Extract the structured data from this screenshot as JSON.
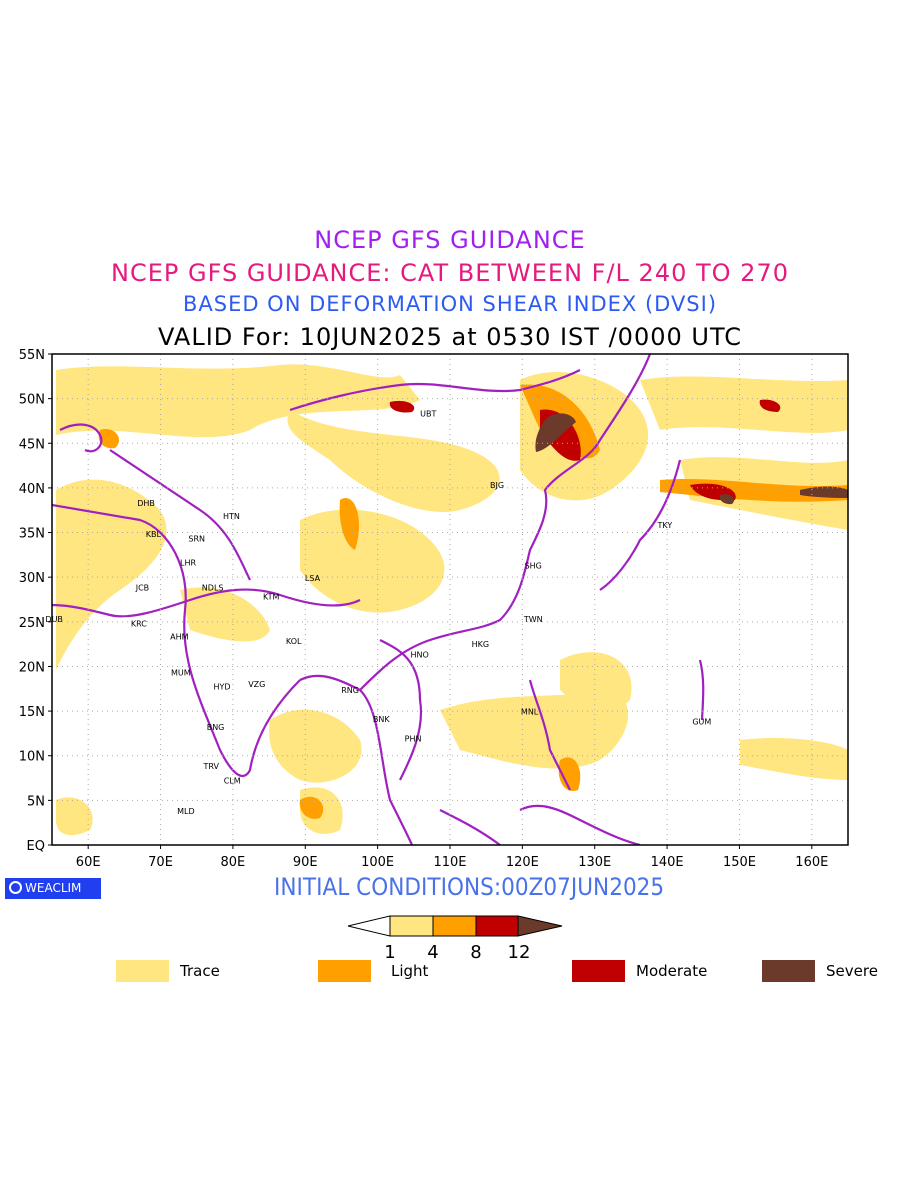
{
  "titles": {
    "line1": "NCEP GFS GUIDANCE",
    "line2": "NCEP GFS GUIDANCE: CAT BETWEEN F/L 240 TO 270",
    "line3": "BASED ON DEFORMATION SHEAR INDEX (DVSI)",
    "line4": "VALID For: 10JUN2025 at 0530 IST /0000 UTC"
  },
  "axes": {
    "lat_labels": [
      "55N",
      "50N",
      "45N",
      "40N",
      "35N",
      "30N",
      "25N",
      "20N",
      "15N",
      "10N",
      "5N",
      "EQ"
    ],
    "lon_labels": [
      "60E",
      "70E",
      "80E",
      "90E",
      "100E",
      "110E",
      "120E",
      "130E",
      "140E",
      "150E",
      "160E"
    ]
  },
  "cities": [
    {
      "code": "UBT",
      "lon": 107,
      "lat": 48
    },
    {
      "code": "BJG",
      "lon": 116.5,
      "lat": 40
    },
    {
      "code": "DHB",
      "lon": 68,
      "lat": 38
    },
    {
      "code": "HTN",
      "lon": 79.8,
      "lat": 36.5
    },
    {
      "code": "KBL",
      "lon": 69,
      "lat": 34.5
    },
    {
      "code": "SRN",
      "lon": 75,
      "lat": 34
    },
    {
      "code": "LHR",
      "lon": 73.8,
      "lat": 31.3
    },
    {
      "code": "TKY",
      "lon": 139.7,
      "lat": 35.5
    },
    {
      "code": "SHG",
      "lon": 121.5,
      "lat": 31
    },
    {
      "code": "LSA",
      "lon": 91,
      "lat": 29.6
    },
    {
      "code": "JCB",
      "lon": 67.5,
      "lat": 28.5
    },
    {
      "code": "NDLS",
      "lon": 77.2,
      "lat": 28.5
    },
    {
      "code": "KTM",
      "lon": 85.3,
      "lat": 27.5
    },
    {
      "code": "DUB",
      "lon": 55.3,
      "lat": 25
    },
    {
      "code": "TWN",
      "lon": 121.5,
      "lat": 25
    },
    {
      "code": "KRC",
      "lon": 67,
      "lat": 24.5
    },
    {
      "code": "AHM",
      "lon": 72.6,
      "lat": 23
    },
    {
      "code": "KOL",
      "lon": 88.4,
      "lat": 22.5
    },
    {
      "code": "HKG",
      "lon": 114.2,
      "lat": 22.2
    },
    {
      "code": "HNO",
      "lon": 105.8,
      "lat": 21
    },
    {
      "code": "MUM",
      "lon": 72.8,
      "lat": 19
    },
    {
      "code": "HYD",
      "lon": 78.5,
      "lat": 17.4
    },
    {
      "code": "VZG",
      "lon": 83.3,
      "lat": 17.7
    },
    {
      "code": "RNG",
      "lon": 96.2,
      "lat": 17
    },
    {
      "code": "MNL",
      "lon": 121,
      "lat": 14.6
    },
    {
      "code": "GUM",
      "lon": 144.8,
      "lat": 13.5
    },
    {
      "code": "BNK",
      "lon": 100.5,
      "lat": 13.8
    },
    {
      "code": "PHN",
      "lon": 104.9,
      "lat": 11.6
    },
    {
      "code": "BNG",
      "lon": 77.6,
      "lat": 12.9
    },
    {
      "code": "TRV",
      "lon": 77,
      "lat": 8.5
    },
    {
      "code": "CLM",
      "lon": 79.9,
      "lat": 6.9
    },
    {
      "code": "MLD",
      "lon": 73.5,
      "lat": 3.5
    }
  ],
  "branding": {
    "logo": "WEACLIM"
  },
  "initial_conditions": "INITIAL CONDITIONS:00Z07JUN2025",
  "colorbar": {
    "labels": [
      "1",
      "4",
      "8",
      "12"
    ],
    "colors": [
      "#ffe680",
      "#ffa000",
      "#c00000",
      "#6b3a2a"
    ]
  },
  "legend": [
    {
      "label": "Trace",
      "color": "#ffe680"
    },
    {
      "label": "Light",
      "color": "#ffa000"
    },
    {
      "label": "Moderate",
      "color": "#c00000"
    },
    {
      "label": "Severe",
      "color": "#6b3a2a"
    }
  ],
  "colors": {
    "borders": "#a020c0",
    "trace": "#ffe680",
    "light": "#ffa000",
    "moderate": "#c00000",
    "severe": "#6b3a2a"
  }
}
